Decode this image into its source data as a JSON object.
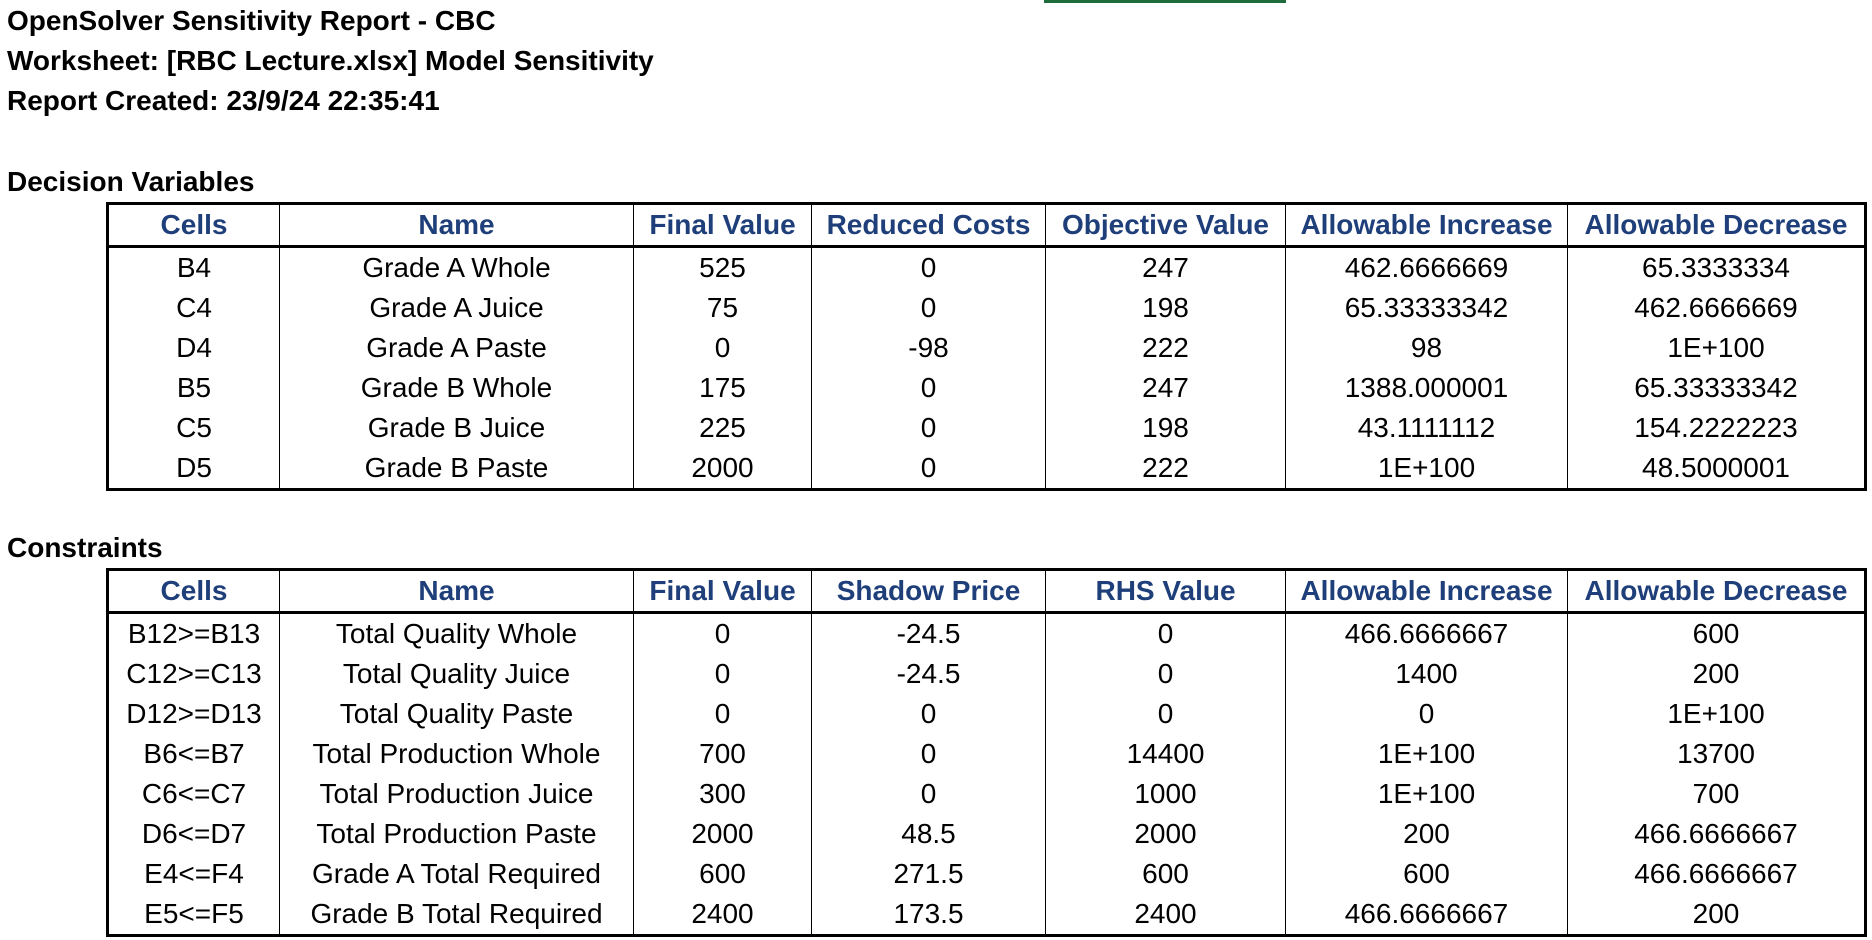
{
  "report": {
    "title": "OpenSolver Sensitivity Report - CBC",
    "worksheet": "Worksheet: [RBC Lecture.xlsx] Model Sensitivity",
    "created": "Report Created: 23/9/24 22:35:41"
  },
  "decision_variables": {
    "heading": "Decision Variables",
    "columns": [
      "Cells",
      "Name",
      "Final Value",
      "Reduced Costs",
      "Objective Value",
      "Allowable Increase",
      "Allowable Decrease"
    ],
    "rows": [
      [
        "B4",
        "Grade A Whole",
        "525",
        "0",
        "247",
        "462.6666669",
        "65.3333334"
      ],
      [
        "C4",
        "Grade A Juice",
        "75",
        "0",
        "198",
        "65.33333342",
        "462.6666669"
      ],
      [
        "D4",
        "Grade A Paste",
        "0",
        "-98",
        "222",
        "98",
        "1E+100"
      ],
      [
        "B5",
        "Grade B Whole",
        "175",
        "0",
        "247",
        "1388.000001",
        "65.33333342"
      ],
      [
        "C5",
        "Grade B Juice",
        "225",
        "0",
        "198",
        "43.1111112",
        "154.2222223"
      ],
      [
        "D5",
        "Grade B Paste",
        "2000",
        "0",
        "222",
        "1E+100",
        "48.5000001"
      ]
    ]
  },
  "constraints": {
    "heading": "Constraints",
    "columns": [
      "Cells",
      "Name",
      "Final Value",
      "Shadow Price",
      "RHS Value",
      "Allowable Increase",
      "Allowable Decrease"
    ],
    "rows": [
      [
        "B12>=B13",
        "Total Quality Whole",
        "0",
        "-24.5",
        "0",
        "466.6666667",
        "600"
      ],
      [
        "C12>=C13",
        "Total Quality Juice",
        "0",
        "-24.5",
        "0",
        "1400",
        "200"
      ],
      [
        "D12>=D13",
        "Total Quality Paste",
        "0",
        "0",
        "0",
        "0",
        "1E+100"
      ],
      [
        "B6<=B7",
        "Total Production Whole",
        "700",
        "0",
        "14400",
        "1E+100",
        "13700"
      ],
      [
        "C6<=C7",
        "Total Production Juice",
        "300",
        "0",
        "1000",
        "1E+100",
        "700"
      ],
      [
        "D6<=D7",
        "Total Production Paste",
        "2000",
        "48.5",
        "2000",
        "200",
        "466.6666667"
      ],
      [
        "E4<=F4",
        "Grade A Total Required",
        "600",
        "271.5",
        "600",
        "600",
        "466.6666667"
      ],
      [
        "E5<=F5",
        "Grade B Total Required",
        "2400",
        "173.5",
        "2400",
        "466.6666667",
        "200"
      ]
    ]
  },
  "colors": {
    "header_text": "#1f3f7a",
    "grid_border": "#000000",
    "sheet_accent": "#1e6b3c"
  }
}
